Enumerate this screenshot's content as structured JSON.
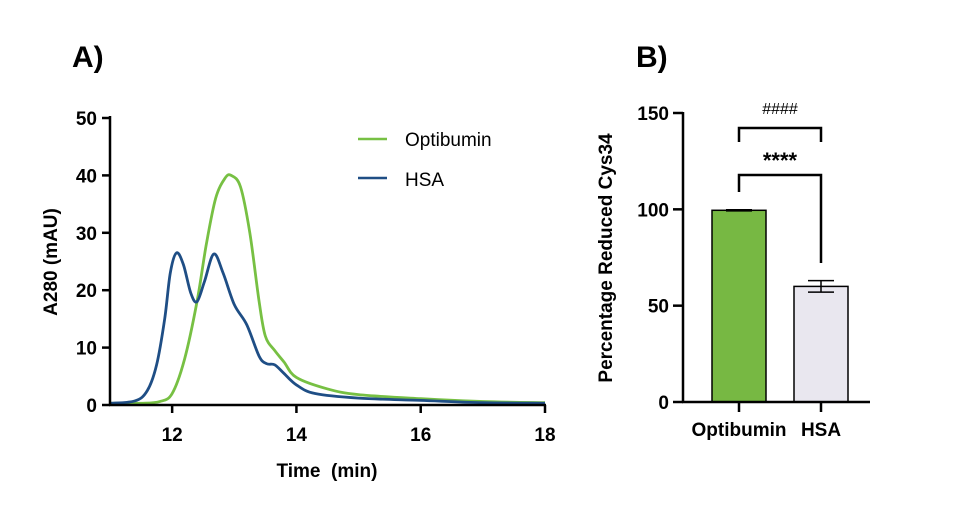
{
  "chart_data": [
    {
      "panel_label": "A)",
      "type": "line",
      "xlabel": "Time  (min)",
      "ylabel": "A280 (mAU)",
      "xlim": [
        11,
        18
      ],
      "ylim": [
        0,
        50
      ],
      "xticks": [
        12,
        14,
        16,
        18
      ],
      "yticks": [
        0,
        10,
        20,
        30,
        40,
        50
      ],
      "grid": false,
      "legend_position": "top-right",
      "series": [
        {
          "name": "Optibumin",
          "color": "#77c043",
          "x": [
            11,
            11.5,
            11.8,
            12.0,
            12.2,
            12.4,
            12.55,
            12.7,
            12.85,
            12.95,
            13.1,
            13.25,
            13.4,
            13.5,
            13.65,
            13.8,
            14.0,
            14.5,
            15,
            16,
            17,
            18
          ],
          "y": [
            0.3,
            0.3,
            0.6,
            2,
            8,
            18,
            28,
            36,
            39.5,
            40,
            38,
            30,
            18,
            12,
            9.5,
            7.5,
            4.8,
            2.8,
            1.8,
            1.1,
            0.6,
            0.4
          ]
        },
        {
          "name": "HSA",
          "color": "#1f4e85",
          "x": [
            11,
            11.4,
            11.6,
            11.75,
            11.88,
            11.97,
            12.07,
            12.18,
            12.3,
            12.4,
            12.52,
            12.67,
            12.82,
            13.0,
            13.2,
            13.4,
            13.52,
            13.65,
            13.8,
            14.0,
            14.3,
            15,
            16,
            17,
            18
          ],
          "y": [
            0.3,
            0.7,
            2.5,
            7,
            15,
            23,
            26.5,
            24.5,
            19.5,
            18,
            21.5,
            26.3,
            23,
            17.5,
            14,
            8.5,
            7.2,
            7,
            5.5,
            3.5,
            2,
            1.2,
            0.8,
            0.4,
            0.3
          ]
        }
      ]
    },
    {
      "panel_label": "B)",
      "type": "bar",
      "ylabel": "Percentage Reduced Cys34",
      "ylim": [
        0,
        150
      ],
      "yticks": [
        0,
        50,
        100,
        150
      ],
      "categories": [
        "Optibumin",
        "HSA"
      ],
      "values": [
        99.5,
        60
      ],
      "errors": [
        0.3,
        3
      ],
      "colors": [
        "#77b843",
        "#e9e7ef"
      ],
      "significance": [
        {
          "label": "****",
          "between": [
            "Optibumin",
            "HSA"
          ]
        },
        {
          "label": "####",
          "between": [
            "Optibumin",
            "HSA"
          ]
        }
      ]
    }
  ]
}
